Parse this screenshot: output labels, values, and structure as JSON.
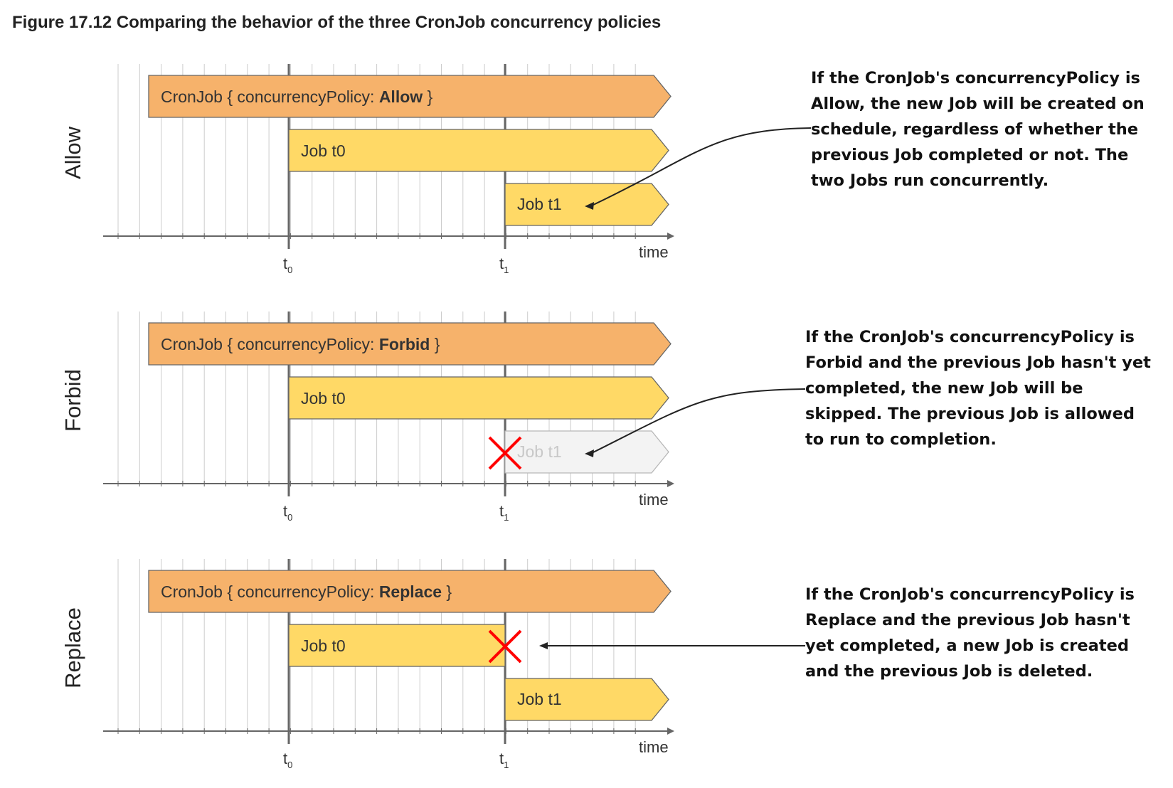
{
  "figure": {
    "caption": "Figure 17.12 Comparing the behavior of the three CronJob concurrency policies"
  },
  "panels": [
    {
      "policy": "Allow",
      "row_label": "Allow",
      "cronjob_label_prefix": "CronJob { concurrencyPolicy: ",
      "cronjob_label_value": "Allow",
      "cronjob_label_suffix": " }",
      "job_t0_label": "Job t0",
      "job_t1_label": "Job t1",
      "job_t1_skipped": false,
      "job_t0_replaced": false,
      "axis_label": "time",
      "tick_labels": [
        "t0",
        "t1"
      ],
      "annotation": "If the CronJob's concurrencyPolicy is Allow, the new Job will be created on schedule, regardless of whether the previous Job completed or not. The two Jobs run concurrently."
    },
    {
      "policy": "Forbid",
      "row_label": "Forbid",
      "cronjob_label_prefix": "CronJob { concurrencyPolicy: ",
      "cronjob_label_value": "Forbid",
      "cronjob_label_suffix": " }",
      "job_t0_label": "Job t0",
      "job_t1_label": "Job t1",
      "job_t1_skipped": true,
      "job_t0_replaced": false,
      "axis_label": "time",
      "tick_labels": [
        "t0",
        "t1"
      ],
      "annotation": "If the CronJob's concurrencyPolicy is Forbid and the previous Job hasn't yet completed, the new Job will be skipped. The previous Job is allowed to run to completion."
    },
    {
      "policy": "Replace",
      "row_label": "Replace",
      "cronjob_label_prefix": "CronJob { concurrencyPolicy: ",
      "cronjob_label_value": "Replace",
      "cronjob_label_suffix": " }",
      "job_t0_label": "Job t0",
      "job_t1_label": "Job t1",
      "job_t1_skipped": false,
      "job_t0_replaced": true,
      "axis_label": "time",
      "tick_labels": [
        "t0",
        "t1"
      ],
      "annotation": "If the CronJob's concurrencyPolicy is Replace and the previous Job hasn't yet completed, a new Job is created and the previous Job is deleted."
    }
  ],
  "colors": {
    "cronjob_fill": "#f6b26b",
    "job_fill": "#ffd966",
    "skipped_fill": "#f3f3f3",
    "bar_stroke": "#666666",
    "grid": "#cccccc",
    "axis": "#666666",
    "cross": "#ff0000"
  }
}
